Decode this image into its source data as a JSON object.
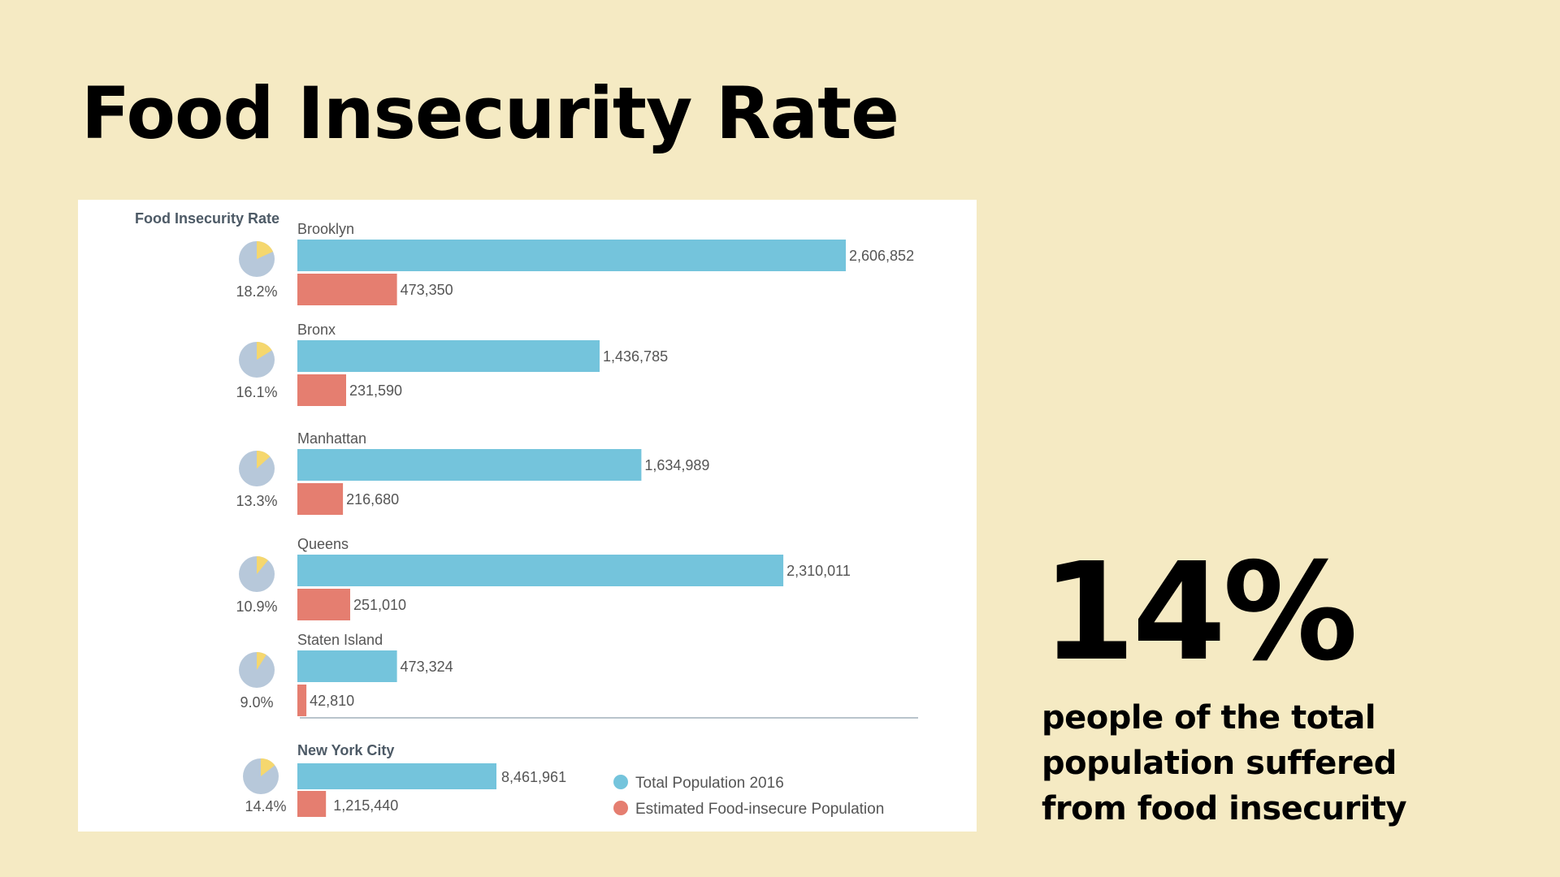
{
  "slide": {
    "title": "Food Insecurity Rate",
    "stat_value": "14%",
    "stat_caption_lines": [
      "people of the total",
      "population suffered",
      "from food insecurity"
    ]
  },
  "colors": {
    "background": "#f5eac3",
    "total_population": "#74c4dc",
    "food_insecure": "#e57e70",
    "pie_base": "#b7c8da",
    "pie_slice": "#f5d76e",
    "label_text": "#555555",
    "header_text": "#4d5a66",
    "divider": "#b9c4cc"
  },
  "chart_data": {
    "type": "bar",
    "orientation": "horizontal",
    "header": "Food Insecurity Rate",
    "categories": [
      "Brooklyn",
      "Bronx",
      "Manhattan",
      "Queens",
      "Staten Island"
    ],
    "series": [
      {
        "name": "Total Population 2016",
        "values": [
          2606852,
          1436785,
          1634989,
          2310011,
          473324
        ],
        "labels": [
          "2,606,852",
          "1,436,785",
          "1,634,989",
          "2,310,011",
          "473,324"
        ]
      },
      {
        "name": "Estimated Food-insecure Population",
        "values": [
          473350,
          231590,
          216680,
          251010,
          42810
        ],
        "labels": [
          "473,350",
          "231,590",
          "216,680",
          "251,010",
          "42,810"
        ]
      }
    ],
    "rates": [
      18.2,
      16.1,
      13.3,
      10.9,
      9.0
    ],
    "rate_labels": [
      "18.2%",
      "16.1%",
      "13.3%",
      "10.9%",
      "9.0%"
    ],
    "total": {
      "name": "New York City",
      "population": 8461961,
      "population_label": "8,461,961",
      "food_insecure": 1215440,
      "food_insecure_label": "1,215,440",
      "rate": 14.4,
      "rate_label": "14.4%"
    },
    "axis_max": 2606852,
    "legend_position": "bottom-right",
    "grid": false
  }
}
